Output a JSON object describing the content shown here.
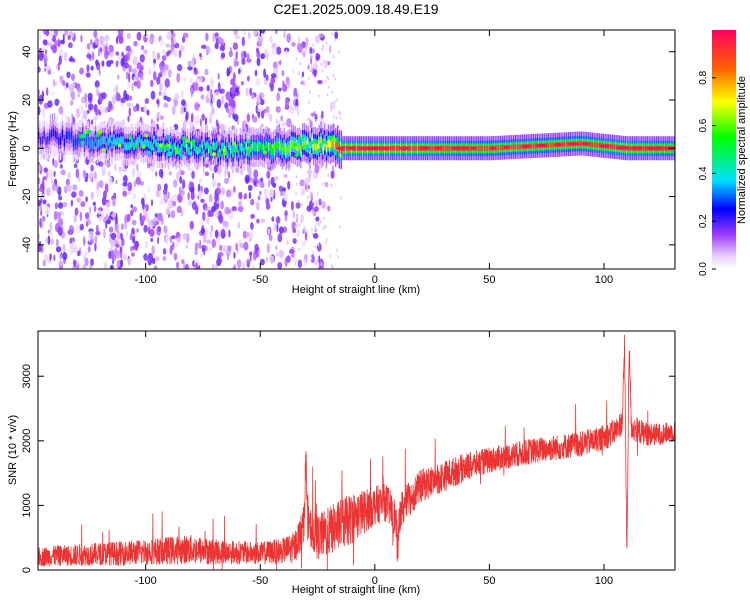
{
  "figure": {
    "title": "C2E1.2025.009.18.49.E19"
  },
  "chart_data": [
    {
      "type": "heatmap",
      "panel": "top",
      "xlabel": "Height of straight line (km)",
      "ylabel": "Frequency (Hz)",
      "xlim": [
        -147,
        131
      ],
      "ylim": [
        -50,
        49
      ],
      "xticks": [
        -100,
        -50,
        0,
        50,
        100
      ],
      "yticks": [
        -40,
        -20,
        0,
        20,
        40
      ],
      "colorbar": {
        "label": "Normalized spectral amplitude",
        "range": [
          0,
          1
        ],
        "ticks": [
          0.0,
          0.2,
          0.4,
          0.6,
          0.8
        ],
        "colors": [
          "#ffffff",
          "#e0b0ff",
          "#8800ff",
          "#0000ff",
          "#00e0ff",
          "#00ff00",
          "#ffff00",
          "#ff6000",
          "#ff0060"
        ]
      },
      "ridge": {
        "description_points_x": [
          -145,
          -120,
          -100,
          -80,
          -60,
          -50,
          -40,
          -30,
          -20,
          -15,
          0,
          10,
          50,
          90,
          110,
          131
        ],
        "center_freq": [
          5,
          3,
          2,
          0,
          -1,
          0,
          0,
          1,
          2,
          0,
          0,
          0,
          0,
          2,
          0,
          0
        ],
        "peak_amplitude": [
          0.2,
          0.35,
          0.4,
          0.45,
          0.45,
          0.5,
          0.6,
          0.65,
          0.7,
          0.95,
          0.95,
          0.95,
          0.9,
          0.9,
          0.95,
          0.9
        ]
      }
    },
    {
      "type": "line",
      "panel": "bottom",
      "xlabel": "Height of straight line (km)",
      "ylabel": "SNR (10 * v/v)",
      "xlim": [
        -147,
        131
      ],
      "ylim": [
        0,
        3700
      ],
      "xticks": [
        -100,
        -50,
        0,
        50,
        100
      ],
      "yticks": [
        0,
        1000,
        2000,
        3000
      ],
      "color": "#ee3333",
      "series": [
        {
          "x": [
            -147,
            -140,
            -130,
            -120,
            -110,
            -100,
            -90,
            -80,
            -70,
            -60,
            -50,
            -40,
            -35,
            -31,
            -30,
            -29,
            -25,
            -20,
            -15,
            -10,
            -5,
            0,
            5,
            9,
            10,
            11,
            15,
            20,
            30,
            40,
            50,
            60,
            70,
            80,
            90,
            100,
            105,
            108,
            109,
            110,
            111,
            112,
            115,
            120,
            125,
            131
          ],
          "values": [
            200,
            220,
            230,
            250,
            260,
            280,
            300,
            320,
            280,
            270,
            260,
            300,
            350,
            700,
            1800,
            700,
            500,
            600,
            700,
            800,
            900,
            1000,
            1050,
            800,
            300,
            900,
            1100,
            1300,
            1450,
            1600,
            1700,
            1780,
            1850,
            1900,
            1950,
            2050,
            2150,
            2300,
            3500,
            200,
            3500,
            2200,
            2150,
            2100,
            2100,
            2150
          ],
          "noise_amplitude": [
            150,
            160,
            170,
            180,
            190,
            200,
            220,
            230,
            200,
            180,
            180,
            200,
            250,
            300,
            300,
            300,
            350,
            380,
            400,
            400,
            350,
            300,
            300,
            300,
            300,
            300,
            280,
            260,
            240,
            220,
            200,
            200,
            200,
            200,
            200,
            200,
            200,
            200,
            200,
            200,
            200,
            200,
            200,
            180,
            170,
            160
          ]
        }
      ]
    }
  ]
}
